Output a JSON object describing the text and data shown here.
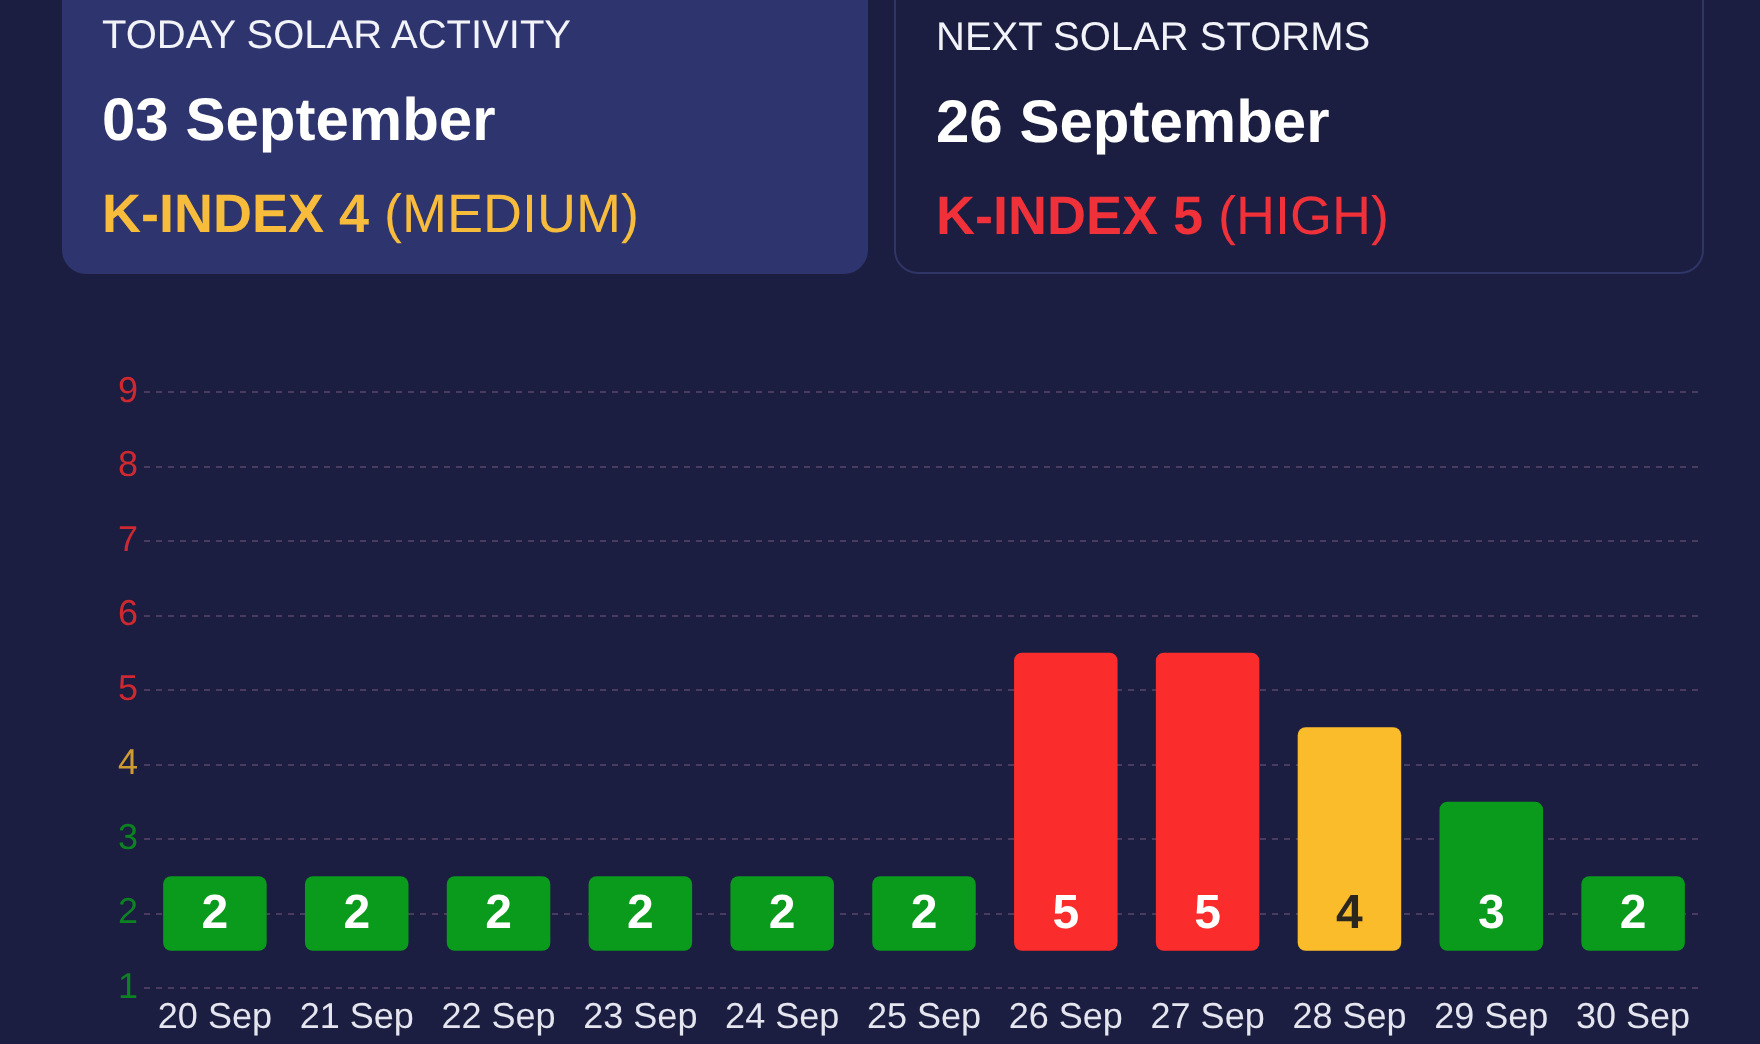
{
  "chart_data": [
    {
      "type": "other",
      "title": "TODAY SOLAR ACTIVITY",
      "annotations": [
        "03 September",
        "K-INDEX 4",
        "(MEDIUM)"
      ],
      "color": "#f7bc3b"
    },
    {
      "type": "other",
      "title": "NEXT SOLAR STORMS",
      "annotations": [
        "26 September",
        "K-INDEX 5",
        "(HIGH)"
      ],
      "color": "#f0313a"
    },
    {
      "type": "bar",
      "categories": [
        "20 Sep",
        "21 Sep",
        "22 Sep",
        "23 Sep",
        "24 Sep",
        "25 Sep",
        "26 Sep",
        "27 Sep",
        "28 Sep",
        "29 Sep",
        "30 Sep"
      ],
      "base": [
        1.5,
        1.5,
        1.5,
        1.5,
        1.5,
        1.5,
        1.5,
        1.5,
        1.5,
        1.5,
        1.5
      ],
      "values": [
        1,
        1,
        1,
        1,
        1,
        1,
        4,
        4,
        3,
        2,
        1
      ],
      "value_labels": [
        "2",
        "2",
        "2",
        "2",
        "2",
        "2",
        "5",
        "5",
        "4",
        "3",
        "2"
      ],
      "colors": [
        "#0a9b1c",
        "#0a9b1c",
        "#0a9b1c",
        "#0a9b1c",
        "#0a9b1c",
        "#0a9b1c",
        "#fb2c2c",
        "#fb2c2c",
        "#fbbc2c",
        "#0a9b1c",
        "#0a9b1c"
      ],
      "ylim": [
        1,
        9
      ],
      "yticks": [
        1,
        2,
        3,
        4,
        5,
        6,
        7,
        8,
        9
      ],
      "grid": "y"
    }
  ]
}
